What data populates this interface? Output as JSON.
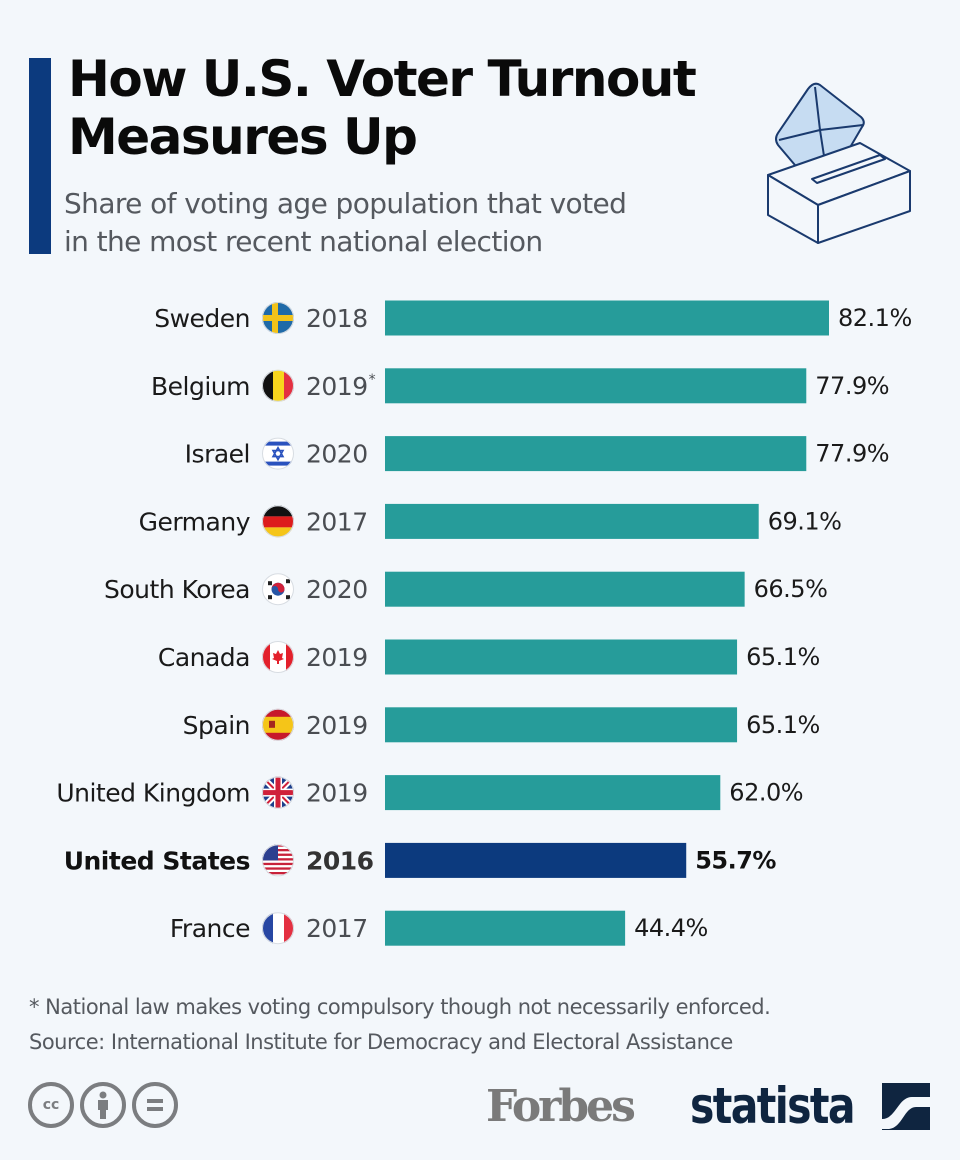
{
  "header": {
    "title_line1": "How U.S. Voter Turnout",
    "title_line2": "Measures Up",
    "subtitle_line1": "Share of voting age population that voted",
    "subtitle_line2": "in the most recent national election",
    "illustration": "ballot-box-icon"
  },
  "colors": {
    "background": "#f3f7fb",
    "accent": "#0c3a7e",
    "bar_default": "#269c9a",
    "bar_highlight": "#0c3a7e",
    "ballot_stroke": "#1a3a6e",
    "envelope_fill": "#c6dcf2"
  },
  "chart_data": {
    "type": "bar",
    "orientation": "horizontal",
    "title": "How U.S. Voter Turnout Measures Up",
    "subtitle": "Share of voting age population that voted in the most recent national election",
    "xlabel": "",
    "ylabel": "",
    "unit": "%",
    "xlim": [
      0,
      100
    ],
    "grid": false,
    "categories": [
      "Sweden",
      "Belgium",
      "Israel",
      "Germany",
      "South Korea",
      "Canada",
      "Spain",
      "United Kingdom",
      "United States",
      "France"
    ],
    "years": [
      "2018",
      "2019",
      "2020",
      "2017",
      "2020",
      "2019",
      "2019",
      "2019",
      "2016",
      "2017"
    ],
    "year_marks": [
      "",
      "*",
      "",
      "",
      "",
      "",
      "",
      "",
      "",
      ""
    ],
    "flags": [
      "sweden-flag-icon",
      "belgium-flag-icon",
      "israel-flag-icon",
      "germany-flag-icon",
      "south-korea-flag-icon",
      "canada-flag-icon",
      "spain-flag-icon",
      "united-kingdom-flag-icon",
      "united-states-flag-icon",
      "france-flag-icon"
    ],
    "values": [
      82.1,
      77.9,
      77.9,
      69.1,
      66.5,
      65.1,
      65.1,
      62.0,
      55.7,
      44.4
    ],
    "value_labels": [
      "82.1%",
      "77.9%",
      "77.9%",
      "69.1%",
      "66.5%",
      "65.1%",
      "65.1%",
      "62.0%",
      "55.7%",
      "44.4%"
    ],
    "highlight": "United States"
  },
  "footer": {
    "note": "* National law makes voting compulsory though not necessarily enforced.",
    "source": "Source: International Institute for Democracy and Electoral Assistance",
    "license_icons": [
      "cc-icon",
      "attribution-icon",
      "no-derivatives-icon"
    ],
    "cc_text": "cc",
    "brand_forbes": "Forbes",
    "brand_statista": "statista"
  }
}
